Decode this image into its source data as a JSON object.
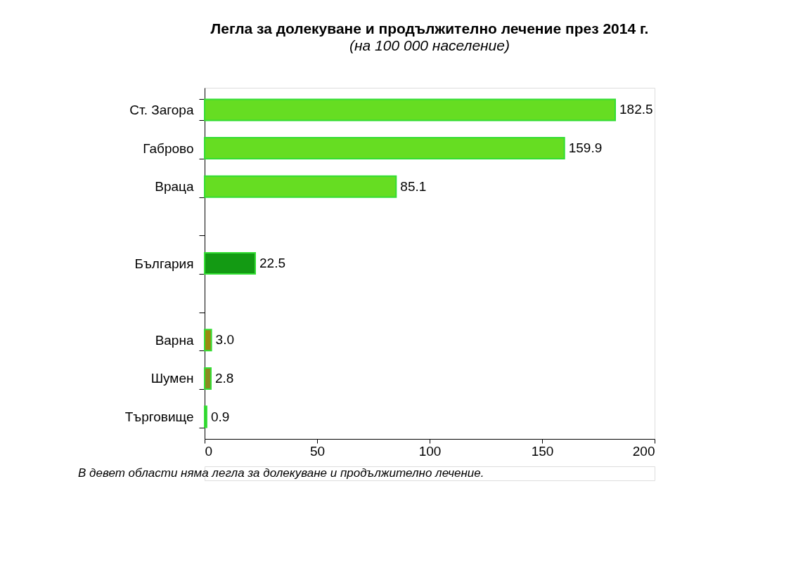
{
  "chart_data": {
    "type": "bar",
    "orientation": "horizontal",
    "title": "Легла за долекуване и продължително лечение през 2014 г.",
    "subtitle": "(на 100 000 население)",
    "categories": [
      "Ст. Загора",
      "Габрово",
      "Враца",
      null,
      "България",
      null,
      "Варна",
      "Шумен",
      "Търговище"
    ],
    "values": [
      182.5,
      159.9,
      85.1,
      null,
      22.5,
      null,
      3.0,
      2.8,
      0.9
    ],
    "colors": [
      "#66dd22",
      "#66dd22",
      "#66dd22",
      null,
      "#139a13",
      null,
      "#9a8a10",
      "#8a8a20",
      "#33cc33"
    ],
    "value_labels": [
      "182.5",
      "159.9",
      "85.1",
      null,
      "22.5",
      null,
      "3.0",
      "2.8",
      "0.9"
    ],
    "xlim": [
      0,
      200
    ],
    "xticks": [
      0,
      50,
      100,
      150,
      200
    ],
    "grid": false,
    "annotations": [
      "В девет области няма легла за долекуване и продължително лечение."
    ]
  }
}
